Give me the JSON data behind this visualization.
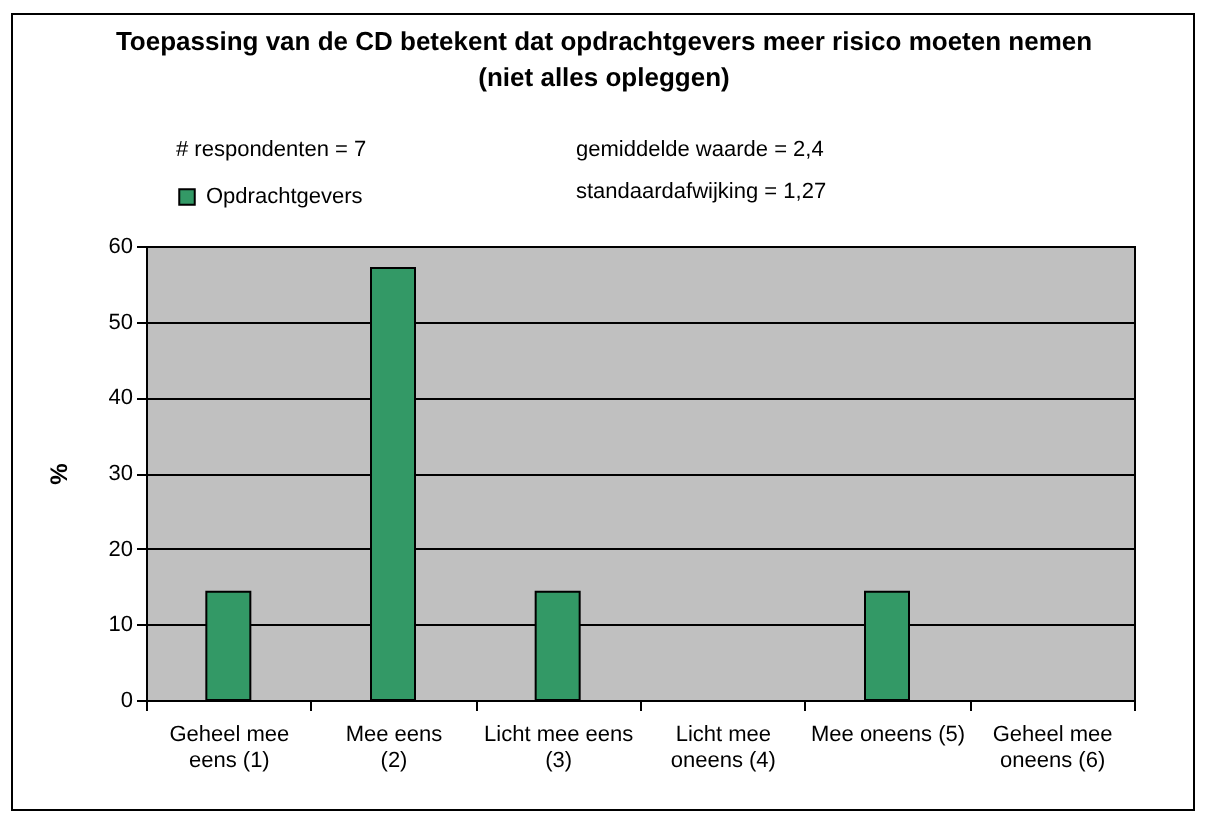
{
  "chart_data": {
    "type": "bar",
    "title": "Toepassing van de CD betekent dat opdrachtgevers meer risico moeten nemen\n(niet alles opleggen)",
    "ylabel": "%",
    "categories": [
      "Geheel mee\neens (1)",
      "Mee eens\n(2)",
      "Licht mee eens\n(3)",
      "Licht mee\noneens (4)",
      "Mee oneens (5)",
      "Geheel mee\noneens (6)"
    ],
    "series": [
      {
        "name": "Opdrachtgevers",
        "color": "#339966",
        "values": [
          14.3,
          57.1,
          14.3,
          0,
          14.3,
          0
        ]
      }
    ],
    "ylim": [
      0,
      60
    ],
    "yticks": [
      0,
      10,
      20,
      30,
      40,
      50,
      60
    ],
    "grid": "y",
    "legend": "top left",
    "annotations": [
      "# respondenten = 7",
      "gemiddelde waarde = 2,4",
      "standaardafwijking = 1,27"
    ]
  }
}
